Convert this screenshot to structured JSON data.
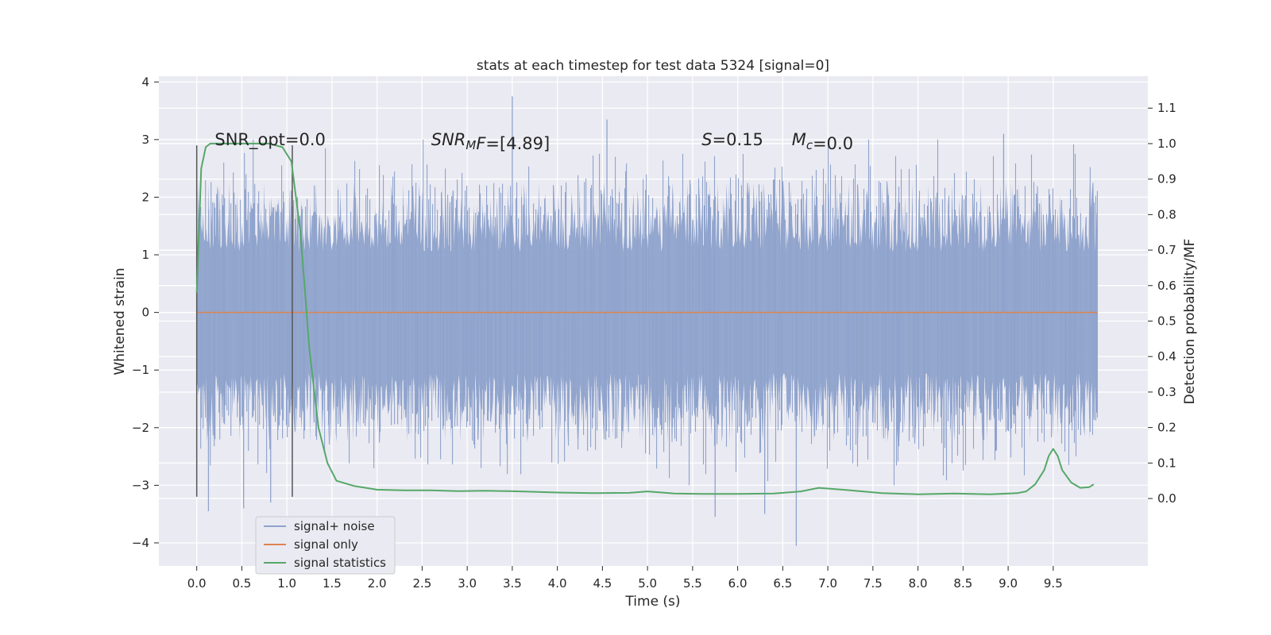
{
  "chart_data": {
    "type": "line",
    "title": "stats at each timestep for test data 5324 [signal=0]",
    "xlabel": "Time (s)",
    "ylabel": "Whitened strain",
    "y2label": "Detection probability/MF",
    "xlim": [
      -0.42,
      10.55
    ],
    "ylim": [
      -4.4,
      4.1
    ],
    "y2lim": [
      -0.19,
      1.19
    ],
    "x_ticks": [
      "0.0",
      "0.5",
      "1.0",
      "1.5",
      "2.0",
      "2.5",
      "3.0",
      "3.5",
      "4.0",
      "4.5",
      "5.0",
      "5.5",
      "6.0",
      "6.5",
      "7.0",
      "7.5",
      "8.0",
      "8.5",
      "9.0",
      "9.5"
    ],
    "y_ticks": [
      "−4",
      "−3",
      "−2",
      "−1",
      "0",
      "1",
      "2",
      "3",
      "4"
    ],
    "y2_ticks": [
      "0.0",
      "0.1",
      "0.2",
      "0.3",
      "0.4",
      "0.5",
      "0.6",
      "0.7",
      "0.8",
      "0.9",
      "1.0",
      "1.1"
    ],
    "grid": true,
    "legend_position": "lower-left",
    "series": [
      {
        "name": "signal+ noise",
        "color": "#8fa3cc",
        "axis": "left",
        "x_range": [
          0.0,
          9.99
        ],
        "typical_band": [
          -1.6,
          1.7
        ],
        "extremes": [
          {
            "x": 0.13,
            "y": -3.45
          },
          {
            "x": 0.52,
            "y": -3.4
          },
          {
            "x": 0.82,
            "y": -3.3
          },
          {
            "x": 3.5,
            "y": 3.75
          },
          {
            "x": 4.55,
            "y": 3.35
          },
          {
            "x": 5.75,
            "y": -3.55
          },
          {
            "x": 6.3,
            "y": -3.5
          },
          {
            "x": 6.65,
            "y": -4.05
          },
          {
            "x": 8.95,
            "y": 3.1
          }
        ]
      },
      {
        "name": "signal only",
        "color": "#dd8452",
        "axis": "left",
        "x": [
          0.0,
          9.99
        ],
        "y": [
          0.0,
          0.0
        ]
      },
      {
        "name": "signal statistics",
        "color": "#55a868",
        "axis": "right",
        "x": [
          0.0,
          0.05,
          0.1,
          0.15,
          0.25,
          0.5,
          0.8,
          0.95,
          1.05,
          1.15,
          1.25,
          1.35,
          1.45,
          1.55,
          1.75,
          2.0,
          2.3,
          2.6,
          2.9,
          3.2,
          3.6,
          4.0,
          4.4,
          4.8,
          5.0,
          5.3,
          5.6,
          6.0,
          6.4,
          6.7,
          6.9,
          7.2,
          7.6,
          8.0,
          8.4,
          8.8,
          9.1,
          9.2,
          9.3,
          9.4,
          9.45,
          9.5,
          9.55,
          9.6,
          9.7,
          9.8,
          9.9,
          9.95
        ],
        "y": [
          0.58,
          0.93,
          0.99,
          1.0,
          1.0,
          1.0,
          1.0,
          0.99,
          0.95,
          0.75,
          0.42,
          0.2,
          0.1,
          0.05,
          0.035,
          0.025,
          0.023,
          0.023,
          0.021,
          0.022,
          0.02,
          0.017,
          0.015,
          0.016,
          0.02,
          0.014,
          0.013,
          0.013,
          0.014,
          0.02,
          0.03,
          0.024,
          0.015,
          0.012,
          0.014,
          0.012,
          0.015,
          0.02,
          0.04,
          0.08,
          0.12,
          0.14,
          0.12,
          0.08,
          0.045,
          0.03,
          0.032,
          0.04
        ]
      }
    ],
    "vlines": [
      {
        "x": 0.0,
        "ymin": -3.2,
        "ymax": 2.9,
        "color": "#555555"
      },
      {
        "x": 1.06,
        "ymin": -3.2,
        "ymax": 2.9,
        "color": "#555555"
      }
    ],
    "annotations": [
      {
        "x": 0.2,
        "y": 3.0,
        "prefix": "SNR_opt",
        "value": "=0.0",
        "math": false
      },
      {
        "x": 2.6,
        "y": 3.0,
        "prefix": "SNR",
        "sub": "M",
        "suffix": "F",
        "value": "=[4.89]",
        "math": true
      },
      {
        "x": 5.6,
        "y": 3.0,
        "prefix": "S",
        "value": "=0.15",
        "math": true
      },
      {
        "x": 6.6,
        "y": 3.0,
        "prefix": "M",
        "sub": "c",
        "value": "=0.0",
        "math": true
      }
    ]
  }
}
